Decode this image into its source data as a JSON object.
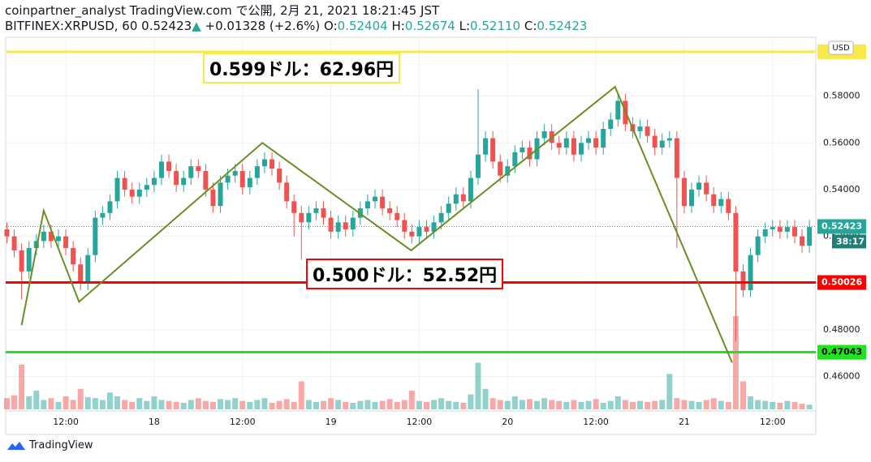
{
  "header": {
    "line1": "coinpartner_analyst TradingView.com で公開, 2月 21, 2021 18:21:45 JST",
    "symbol": "BITFINEX:XRPUSD, 60",
    "last": "0.52423",
    "arrow": "▲",
    "change": "+0.01328 (+2.6%)",
    "o_label": "O:",
    "o": "0.52404",
    "h_label": "H:",
    "h": "0.52674",
    "l_label": "L:",
    "l": "0.52110",
    "c_label": "C:",
    "c": "0.52423"
  },
  "chart_data": {
    "type": "candlestick",
    "currency": "USD",
    "ylim": [
      0.446,
      0.6045
    ],
    "yticks": [
      {
        "value": 0.46,
        "label": "0.46000"
      },
      {
        "value": 0.48,
        "label": "0.48000"
      },
      {
        "value": 0.5,
        "label": "0.50000"
      },
      {
        "value": 0.52,
        "label": "0.52000"
      },
      {
        "value": 0.54,
        "label": "0.54000"
      },
      {
        "value": 0.56,
        "label": "0.56000"
      },
      {
        "value": 0.58,
        "label": "0.58000"
      }
    ],
    "xticks": [
      {
        "value": 8,
        "label": "12:00"
      },
      {
        "value": 20,
        "label": "18"
      },
      {
        "value": 32,
        "label": "12:00"
      },
      {
        "value": 44,
        "label": "19"
      },
      {
        "value": 56,
        "label": "12:00"
      },
      {
        "value": 68,
        "label": "20"
      },
      {
        "value": 80,
        "label": "12:00"
      },
      {
        "value": 92,
        "label": "21"
      },
      {
        "value": 104,
        "label": "12:00"
      }
    ],
    "grid": true,
    "up_color": "#26a69a",
    "down_color": "#ef5350",
    "open": [
      0.523,
      0.52,
      0.514,
      0.505,
      0.515,
      0.518,
      0.522,
      0.518,
      0.52,
      0.515,
      0.508,
      0.5,
      0.512,
      0.528,
      0.53,
      0.535,
      0.545,
      0.54,
      0.537,
      0.54,
      0.542,
      0.545,
      0.552,
      0.548,
      0.542,
      0.545,
      0.55,
      0.548,
      0.54,
      0.533,
      0.543,
      0.546,
      0.548,
      0.541,
      0.545,
      0.55,
      0.553,
      0.549,
      0.543,
      0.535,
      0.53,
      0.526,
      0.53,
      0.532,
      0.528,
      0.522,
      0.526,
      0.523,
      0.528,
      0.532,
      0.535,
      0.537,
      0.532,
      0.53,
      0.527,
      0.522,
      0.52,
      0.524,
      0.522,
      0.526,
      0.53,
      0.534,
      0.538,
      0.535,
      0.545,
      0.555,
      0.562,
      0.552,
      0.546,
      0.55,
      0.556,
      0.558,
      0.553,
      0.562,
      0.565,
      0.56,
      0.558,
      0.562,
      0.555,
      0.56,
      0.562,
      0.558,
      0.566,
      0.57,
      0.578,
      0.568,
      0.565,
      0.567,
      0.563,
      0.558,
      0.561,
      0.562,
      0.545,
      0.533,
      0.54,
      0.543,
      0.538,
      0.533,
      0.536,
      0.53,
      0.505,
      0.497,
      0.512,
      0.52,
      0.523,
      0.524,
      0.522,
      0.524,
      0.52,
      0.516
    ],
    "high": [
      0.526,
      0.523,
      0.517,
      0.518,
      0.521,
      0.525,
      0.525,
      0.523,
      0.523,
      0.518,
      0.511,
      0.515,
      0.531,
      0.533,
      0.538,
      0.548,
      0.548,
      0.543,
      0.543,
      0.545,
      0.548,
      0.555,
      0.555,
      0.551,
      0.548,
      0.553,
      0.553,
      0.551,
      0.543,
      0.546,
      0.549,
      0.551,
      0.551,
      0.548,
      0.553,
      0.556,
      0.556,
      0.552,
      0.546,
      0.538,
      0.533,
      0.533,
      0.535,
      0.535,
      0.531,
      0.529,
      0.529,
      0.531,
      0.535,
      0.538,
      0.54,
      0.54,
      0.535,
      0.533,
      0.53,
      0.525,
      0.527,
      0.527,
      0.529,
      0.533,
      0.537,
      0.541,
      0.541,
      0.548,
      0.583,
      0.565,
      0.565,
      0.555,
      0.553,
      0.559,
      0.561,
      0.561,
      0.565,
      0.568,
      0.568,
      0.563,
      0.565,
      0.565,
      0.563,
      0.565,
      0.565,
      0.569,
      0.573,
      0.581,
      0.581,
      0.571,
      0.57,
      0.57,
      0.566,
      0.564,
      0.565,
      0.565,
      0.548,
      0.543,
      0.546,
      0.546,
      0.541,
      0.539,
      0.539,
      0.533,
      0.508,
      0.515,
      0.523,
      0.526,
      0.527,
      0.527,
      0.527,
      0.527,
      0.523,
      0.527
    ],
    "low": [
      0.517,
      0.511,
      0.493,
      0.502,
      0.512,
      0.515,
      0.515,
      0.515,
      0.512,
      0.505,
      0.497,
      0.497,
      0.509,
      0.525,
      0.527,
      0.532,
      0.537,
      0.534,
      0.534,
      0.537,
      0.539,
      0.542,
      0.545,
      0.539,
      0.539,
      0.542,
      0.545,
      0.537,
      0.53,
      0.53,
      0.54,
      0.543,
      0.538,
      0.538,
      0.542,
      0.547,
      0.546,
      0.54,
      0.532,
      0.52,
      0.51,
      0.523,
      0.527,
      0.525,
      0.519,
      0.519,
      0.52,
      0.52,
      0.525,
      0.529,
      0.532,
      0.529,
      0.527,
      0.524,
      0.519,
      0.517,
      0.517,
      0.519,
      0.519,
      0.523,
      0.527,
      0.531,
      0.532,
      0.532,
      0.542,
      0.552,
      0.549,
      0.543,
      0.543,
      0.547,
      0.553,
      0.55,
      0.55,
      0.559,
      0.557,
      0.555,
      0.555,
      0.552,
      0.552,
      0.557,
      0.555,
      0.555,
      0.563,
      0.567,
      0.565,
      0.562,
      0.562,
      0.56,
      0.555,
      0.555,
      0.558,
      0.515,
      0.53,
      0.53,
      0.537,
      0.535,
      0.53,
      0.53,
      0.527,
      0.475,
      0.494,
      0.494,
      0.509,
      0.517,
      0.52,
      0.519,
      0.519,
      0.517,
      0.513,
      0.513
    ],
    "close": [
      0.52,
      0.514,
      0.505,
      0.515,
      0.518,
      0.522,
      0.518,
      0.52,
      0.515,
      0.508,
      0.5,
      0.512,
      0.528,
      0.53,
      0.535,
      0.545,
      0.54,
      0.537,
      0.54,
      0.542,
      0.545,
      0.552,
      0.548,
      0.542,
      0.545,
      0.55,
      0.548,
      0.54,
      0.533,
      0.543,
      0.546,
      0.548,
      0.541,
      0.545,
      0.55,
      0.553,
      0.549,
      0.543,
      0.535,
      0.53,
      0.526,
      0.53,
      0.532,
      0.528,
      0.522,
      0.526,
      0.523,
      0.528,
      0.532,
      0.535,
      0.537,
      0.532,
      0.53,
      0.527,
      0.522,
      0.52,
      0.524,
      0.522,
      0.526,
      0.53,
      0.534,
      0.538,
      0.535,
      0.545,
      0.555,
      0.562,
      0.552,
      0.546,
      0.55,
      0.556,
      0.558,
      0.553,
      0.562,
      0.565,
      0.56,
      0.558,
      0.562,
      0.555,
      0.56,
      0.562,
      0.558,
      0.566,
      0.57,
      0.578,
      0.568,
      0.565,
      0.567,
      0.563,
      0.558,
      0.561,
      0.562,
      0.545,
      0.533,
      0.54,
      0.543,
      0.538,
      0.533,
      0.536,
      0.53,
      0.505,
      0.497,
      0.512,
      0.52,
      0.523,
      0.524,
      0.522,
      0.524,
      0.52,
      0.516,
      0.524
    ],
    "volume_lim": [
      0,
      100
    ],
    "volume": [
      12,
      15,
      48,
      14,
      20,
      10,
      12,
      8,
      14,
      10,
      22,
      13,
      12,
      10,
      18,
      14,
      10,
      8,
      12,
      9,
      14,
      10,
      9,
      8,
      7,
      10,
      12,
      9,
      8,
      11,
      10,
      12,
      9,
      8,
      10,
      12,
      7,
      9,
      11,
      8,
      30,
      10,
      8,
      9,
      12,
      10,
      8,
      7,
      9,
      10,
      8,
      9,
      11,
      8,
      10,
      20,
      9,
      8,
      10,
      12,
      9,
      8,
      7,
      16,
      50,
      22,
      12,
      10,
      9,
      14,
      10,
      11,
      9,
      12,
      10,
      9,
      8,
      10,
      8,
      9,
      11,
      7,
      9,
      14,
      10,
      8,
      9,
      8,
      9,
      10,
      38,
      12,
      10,
      9,
      8,
      10,
      12,
      9,
      8,
      100,
      30,
      14,
      10,
      9,
      8,
      7,
      9,
      8,
      6,
      5
    ],
    "hlines": [
      {
        "value": 0.599,
        "color": "#f7e94a"
      },
      {
        "value": 0.50026,
        "color": "#ff0000"
      },
      {
        "value": 0.47043,
        "color": "#1ee61e"
      }
    ],
    "zigzag": {
      "color": "#6b8e23",
      "x": [
        2,
        5,
        9.8,
        34.7,
        54.9,
        82.6,
        98.5
      ],
      "y": [
        0.482,
        0.531,
        0.492,
        0.56,
        0.514,
        0.584,
        0.466
      ]
    },
    "last_price": 0.52423,
    "countdown": "38:17",
    "annotations": [
      {
        "text": "0.599ドル：62.96円",
        "color": "#f7e94a"
      },
      {
        "text": "0.500ドル：52.52円",
        "color": "#ff0000"
      }
    ]
  },
  "footer": {
    "logo": "TradingView"
  }
}
